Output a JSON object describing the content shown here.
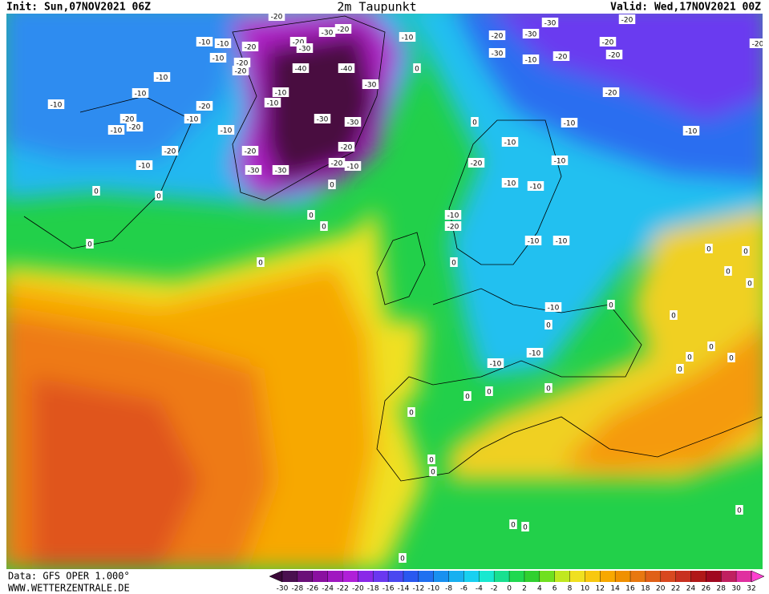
{
  "header": {
    "init": "Init: Sun,07NOV2021 06Z",
    "title": "2m Taupunkt",
    "valid": "Valid: Wed,17NOV2021 00Z"
  },
  "footer": {
    "data": "Data: GFS OPER 1.000°",
    "website": "WWW.WETTERZENTRALE.DE"
  },
  "colorbar": {
    "ticks": [
      -30,
      -28,
      -26,
      -24,
      -22,
      -20,
      -18,
      -16,
      -14,
      -12,
      -10,
      -8,
      -6,
      -4,
      -2,
      0,
      2,
      4,
      6,
      8,
      10,
      12,
      14,
      16,
      18,
      20,
      22,
      24,
      26,
      28,
      30,
      32
    ],
    "colors": [
      "#3a0838",
      "#4a1050",
      "#6a1078",
      "#8a10a0",
      "#a018c0",
      "#b020d8",
      "#8a28e8",
      "#6a38f0",
      "#4a48f0",
      "#2a58f0",
      "#2070f0",
      "#1890f0",
      "#18b0f0",
      "#18d0f0",
      "#18e8d0",
      "#18e090",
      "#20d850",
      "#30d030",
      "#70e020",
      "#c0e820",
      "#f0e020",
      "#f8c810",
      "#f8a800",
      "#f09000",
      "#e87810",
      "#e06018",
      "#d84820",
      "#c83020",
      "#b01818",
      "#a00820",
      "#c02060",
      "#e030a0",
      "#ff40d0"
    ]
  },
  "contour_labels": [
    -10,
    -10,
    -20,
    -10,
    -20,
    -10,
    -20,
    -10,
    -10,
    -10,
    -20,
    -10,
    -20,
    -10,
    -20,
    -10,
    -10,
    -20,
    -10,
    -20,
    -30,
    -30,
    -40,
    -40,
    -30,
    -30,
    -30,
    -20,
    -20,
    -10,
    -20,
    -30,
    -20,
    -20,
    -30,
    -10,
    -20,
    -30,
    -30,
    -20,
    -20,
    -20,
    -30,
    -10,
    -20,
    -20,
    -20,
    -10,
    -10,
    -10,
    -10,
    -20,
    -10,
    -10,
    -10,
    -20,
    -10,
    -10,
    -10,
    -10,
    -10,
    0,
    0,
    0,
    0,
    0,
    0,
    0,
    0,
    0,
    0,
    0,
    0,
    0,
    0,
    0,
    0,
    0,
    0,
    0,
    0,
    0,
    0,
    0,
    0,
    0,
    0,
    0,
    0,
    0,
    0,
    0
  ]
}
